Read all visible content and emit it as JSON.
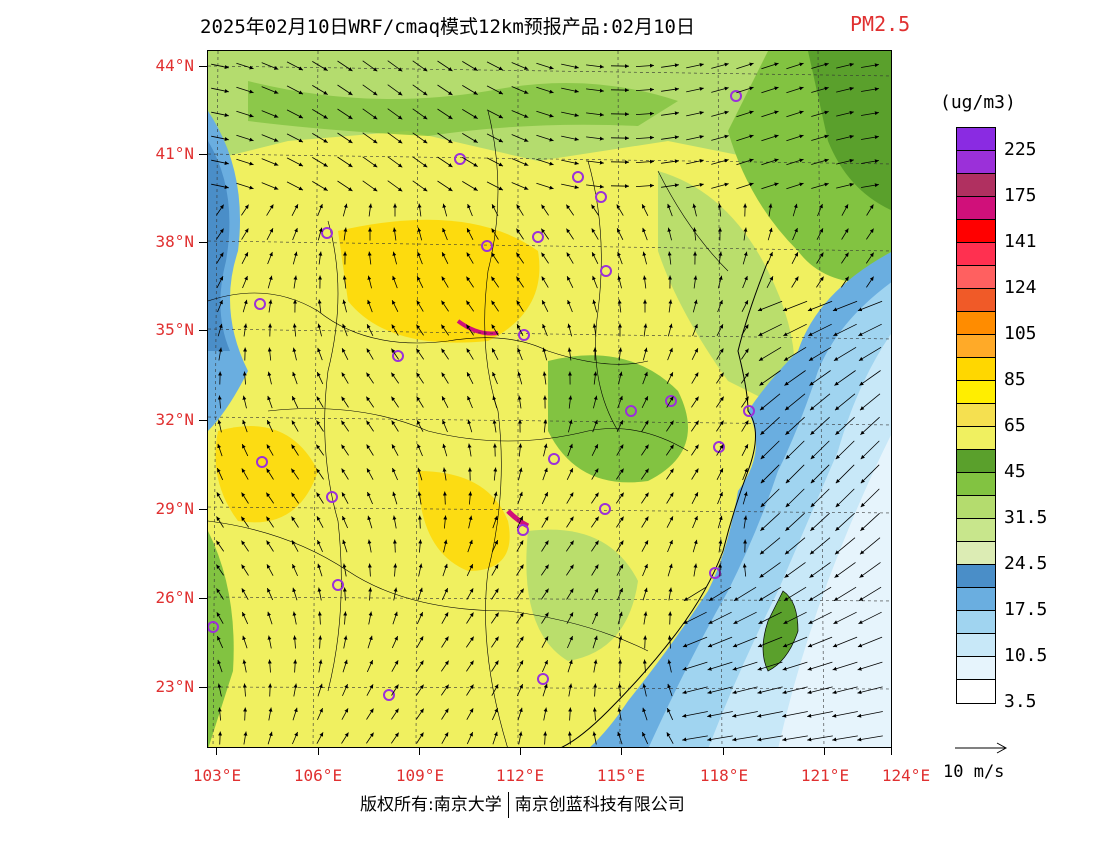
{
  "title": "2025年02月10日WRF/cmaq模式12km预报产品:02月10日",
  "variable": "PM2.5",
  "unit": "(ug/m3)",
  "lat_labels": [
    "44°N",
    "41°N",
    "38°N",
    "35°N",
    "32°N",
    "29°N",
    "26°N",
    "23°N"
  ],
  "lon_labels": [
    "103°E",
    "106°E",
    "109°E",
    "112°E",
    "115°E",
    "118°E",
    "121°E",
    "124°E"
  ],
  "colorbar": {
    "colors": [
      "#8a2be2",
      "#9b30d9",
      "#b03060",
      "#d0107a",
      "#ff0000",
      "#ff3050",
      "#ff6060",
      "#f05a28",
      "#ff8c00",
      "#ffaa28",
      "#ffd700",
      "#ffee00",
      "#f5e050",
      "#f0f060",
      "#5aa02c",
      "#82c341",
      "#b4dc6e",
      "#c8e68c",
      "#dcecb4",
      "#4a8ec8",
      "#6aaee0",
      "#a0d4f0",
      "#c8e8f8",
      "#e6f4fc",
      "#ffffff"
    ],
    "labels": [
      "225",
      "175",
      "141",
      "124",
      "105",
      "85",
      "65",
      "45",
      "31.5",
      "24.5",
      "17.5",
      "10.5",
      "3.5"
    ]
  },
  "reference_vector": "10 m/s",
  "footer": {
    "left": "版权所有:南京大学",
    "right": "南京创蓝科技有限公司"
  },
  "colors": {
    "accent": "#e03030",
    "sea": "#6aaee0",
    "land_base": "#f0f060"
  }
}
